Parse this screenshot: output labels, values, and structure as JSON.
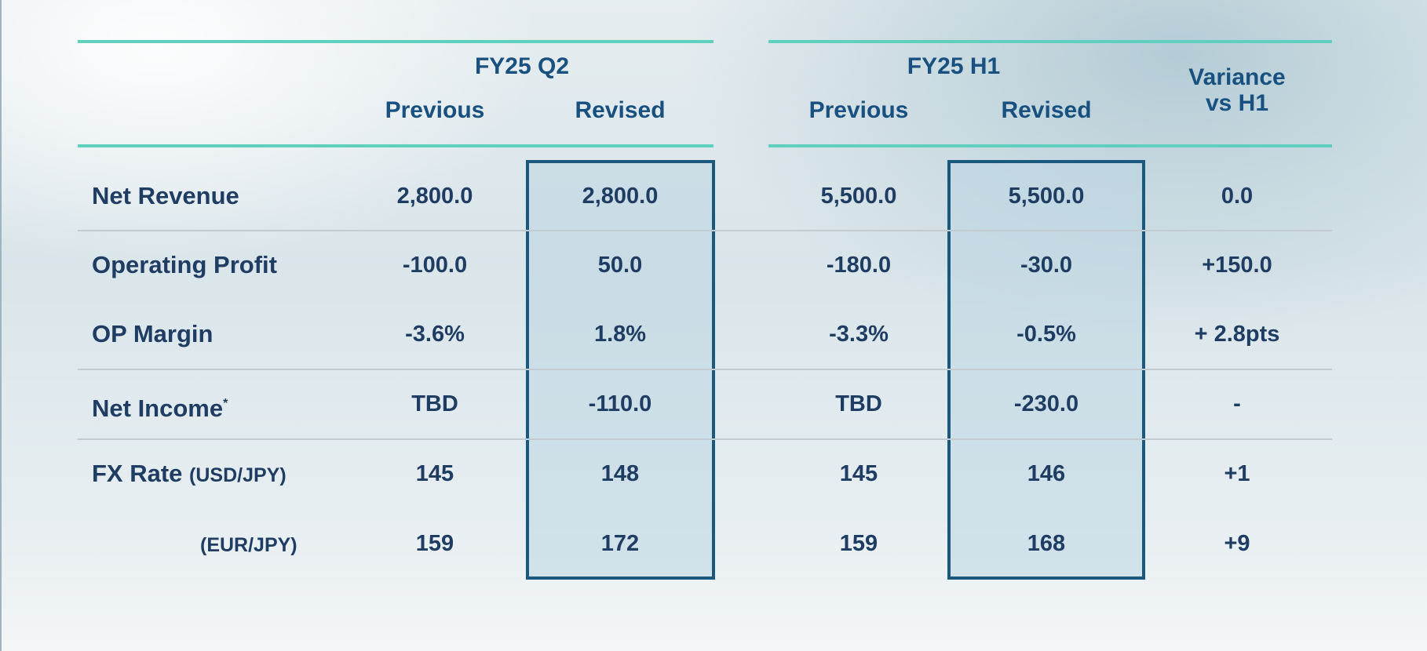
{
  "table": {
    "groups": {
      "q2": "FY25 Q2",
      "h1": "FY25 H1",
      "variance_line1": "Variance",
      "variance_line2": "vs H1"
    },
    "subheaders": {
      "q2_previous": "Previous",
      "q2_revised": "Revised",
      "h1_previous": "Previous",
      "h1_revised": "Revised"
    },
    "rows": [
      {
        "label": "Net Revenue",
        "q2_prev": "2,800.0",
        "q2_rev": "2,800.0",
        "h1_prev": "5,500.0",
        "h1_rev": "5,500.0",
        "var": "0.0"
      },
      {
        "label": "Operating Profit",
        "q2_prev": "-100.0",
        "q2_rev": "50.0",
        "h1_prev": "-180.0",
        "h1_rev": "-30.0",
        "var": "+150.0"
      },
      {
        "label": "OP Margin",
        "q2_prev": "-3.6%",
        "q2_rev": "1.8%",
        "h1_prev": "-3.3%",
        "h1_rev": "-0.5%",
        "var": "+ 2.8pts"
      },
      {
        "label": "Net Income",
        "footnote_mark": "*",
        "q2_prev": "TBD",
        "q2_rev": "-110.0",
        "h1_prev": "TBD",
        "h1_rev": "-230.0",
        "var": "-"
      },
      {
        "label": "FX Rate",
        "label_suffix": "(USD/JPY)",
        "q2_prev": "145",
        "q2_rev": "148",
        "h1_prev": "145",
        "h1_rev": "146",
        "var": "+1"
      },
      {
        "label": "(EUR/JPY)",
        "q2_prev": "159",
        "q2_rev": "172",
        "h1_prev": "159",
        "h1_rev": "168",
        "var": "+9"
      }
    ]
  },
  "colors": {
    "accent_rule": "#5fd0bd",
    "header_text": "#18507f",
    "body_text": "#1f3d63",
    "highlight_border": "#1b587d"
  }
}
